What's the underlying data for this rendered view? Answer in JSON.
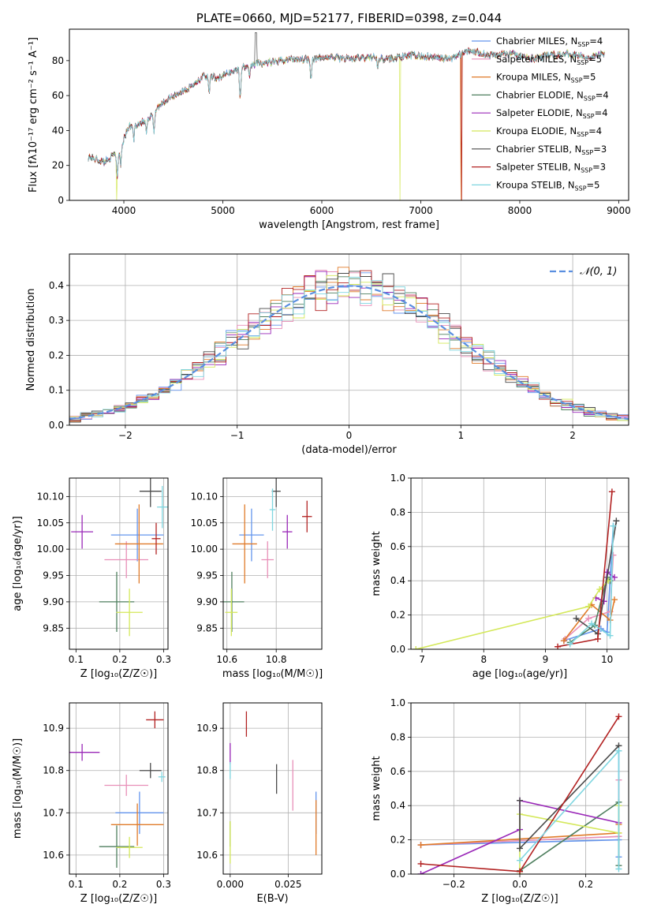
{
  "colors": {
    "Chabrier MILES": "#6495ed",
    "Salpeter MILES": "#e88fb8",
    "Kroupa MILES": "#e07b2a",
    "Chabrier ELODIE": "#4f7f5f",
    "Salpeter ELODIE": "#9a28b8",
    "Kroupa ELODIE": "#d4e85a",
    "Chabrier STELIB": "#4a4a4a",
    "Salpeter STELIB": "#b22222",
    "Kroupa STELIB": "#7fd6e0",
    "normal": "#5a8fe0",
    "grid": "#b0b0b0"
  },
  "chart_data": [
    {
      "id": "spectrum",
      "type": "line",
      "title": "PLATE=0660, MJD=52177, FIBERID=0398, z=0.044",
      "xlabel": "wavelength [Angstrom, rest frame]",
      "ylabel": "Flux [fλ10⁻¹⁷ erg cm⁻² s⁻¹ A⁻¹]",
      "xlim": [
        3450,
        9100
      ],
      "ylim": [
        0,
        98
      ],
      "xticks": [
        "4000",
        "5000",
        "6000",
        "7000",
        "8000",
        "9000"
      ],
      "yticks": [
        "0",
        "20",
        "40",
        "60",
        "80"
      ],
      "legend": [
        {
          "name": "Chabrier MILES",
          "nssp": "4"
        },
        {
          "name": "Salpeter MILES",
          "nssp": "5"
        },
        {
          "name": "Kroupa MILES",
          "nssp": "5"
        },
        {
          "name": "Chabrier ELODIE",
          "nssp": "4"
        },
        {
          "name": "Salpeter ELODIE",
          "nssp": "4"
        },
        {
          "name": "Kroupa ELODIE",
          "nssp": "4"
        },
        {
          "name": "Chabrier STELIB",
          "nssp": "3"
        },
        {
          "name": "Salpeter STELIB",
          "nssp": "3"
        },
        {
          "name": "Kroupa STELIB",
          "nssp": "5"
        }
      ],
      "legend_loc": "upper right",
      "grid": false,
      "continuum": [
        [
          3640,
          25
        ],
        [
          3800,
          22
        ],
        [
          3950,
          28
        ],
        [
          4050,
          42
        ],
        [
          4150,
          44
        ],
        [
          4250,
          46
        ],
        [
          4350,
          54
        ],
        [
          4500,
          60
        ],
        [
          4650,
          64
        ],
        [
          4800,
          71
        ],
        [
          4950,
          70
        ],
        [
          5100,
          74
        ],
        [
          5300,
          78
        ],
        [
          5500,
          79
        ],
        [
          5700,
          81
        ],
        [
          5900,
          81
        ],
        [
          6100,
          82
        ],
        [
          6300,
          81
        ],
        [
          6500,
          82
        ],
        [
          6700,
          81
        ],
        [
          6900,
          83
        ],
        [
          7100,
          82
        ],
        [
          7300,
          81
        ],
        [
          7500,
          86
        ],
        [
          7700,
          83
        ],
        [
          7900,
          84
        ],
        [
          8100,
          81
        ],
        [
          8300,
          83
        ],
        [
          8500,
          84
        ],
        [
          8700,
          82
        ],
        [
          8850,
          84
        ]
      ],
      "absorption_lines": [
        [
          3934,
          -14
        ],
        [
          3969,
          -10
        ],
        [
          4101,
          -8
        ],
        [
          4227,
          -7
        ],
        [
          4304,
          -12
        ],
        [
          4861,
          -10
        ],
        [
          5175,
          -18
        ],
        [
          5270,
          -8
        ],
        [
          5890,
          -11
        ],
        [
          6563,
          -6
        ]
      ],
      "dropouts": [
        {
          "series": "Kroupa ELODIE",
          "x": 3925
        },
        {
          "series": "Kroupa ELODIE",
          "x": 6790
        },
        {
          "series": "Kroupa MILES",
          "x": 7405
        },
        {
          "series": "Salpeter STELIB",
          "x": 7410
        }
      ],
      "spike": {
        "x": 5335,
        "y": 96
      }
    },
    {
      "id": "histogram",
      "type": "histogram",
      "xlabel": "(data-model)/error",
      "ylabel": "Normed distribution",
      "xlim": [
        -2.5,
        2.5
      ],
      "ylim": [
        0,
        0.49
      ],
      "bins": 50,
      "xticks": [
        "−2",
        "−1",
        "0",
        "1",
        "2"
      ],
      "yticks": [
        "0.0",
        "0.1",
        "0.2",
        "0.3",
        "0.4"
      ],
      "legend": [
        "𝒩(0, 1)"
      ],
      "legend_loc": "upper right",
      "grid": true,
      "reference": "normal(0,1)"
    },
    {
      "id": "age_vs_z",
      "type": "errorbar",
      "xlabel": "Z [log₁₀(Z/Z☉)]",
      "ylabel": "age  [log₁₀(age/yr)]",
      "xlim": [
        0.085,
        0.31
      ],
      "ylim": [
        9.81,
        10.135
      ],
      "xticks": [
        "0.1",
        "0.2",
        "0.3"
      ],
      "yticks": [
        "9.85",
        "9.90",
        "9.95",
        "10.00",
        "10.05",
        "10.10"
      ],
      "grid": true,
      "points": [
        {
          "series": "Chabrier MILES",
          "x": 0.24,
          "y": 10.027,
          "xerr": 0.06,
          "yerr": 0.05
        },
        {
          "series": "Salpeter MILES",
          "x": 0.215,
          "y": 9.98,
          "xerr": 0.05,
          "yerr": 0.035
        },
        {
          "series": "Kroupa MILES",
          "x": 0.244,
          "y": 10.01,
          "xerr": 0.055,
          "yerr": 0.075
        },
        {
          "series": "Chabrier ELODIE",
          "x": 0.193,
          "y": 9.9,
          "xerr": 0.04,
          "yerr": 0.057
        },
        {
          "series": "Salpeter ELODIE",
          "x": 0.114,
          "y": 10.033,
          "xerr": 0.025,
          "yerr": 0.032
        },
        {
          "series": "Kroupa ELODIE",
          "x": 0.222,
          "y": 9.88,
          "xerr": 0.03,
          "yerr": 0.045
        },
        {
          "series": "Chabrier STELIB",
          "x": 0.27,
          "y": 10.11,
          "xerr": 0.025,
          "yerr": 0.03
        },
        {
          "series": "Salpeter STELIB",
          "x": 0.283,
          "y": 10.02,
          "xerr": 0.01,
          "yerr": 0.03
        },
        {
          "series": "Kroupa STELIB",
          "x": 0.297,
          "y": 10.08,
          "xerr": 0.012,
          "yerr": 0.04
        }
      ]
    },
    {
      "id": "age_vs_mass",
      "type": "errorbar",
      "xlabel": "mass [log₁₀(M/M☉)]",
      "ylabel": "",
      "xlim": [
        0.585,
        0.985
      ],
      "xscale_offset": 10,
      "ylim": [
        9.81,
        10.135
      ],
      "xticks": [
        "10.6",
        "10.8"
      ],
      "yticks": [
        "9.85",
        "9.90",
        "9.95",
        "10.00",
        "10.05",
        "10.10"
      ],
      "grid": true,
      "points": [
        {
          "series": "Chabrier MILES",
          "x": 10.7,
          "y": 10.027,
          "xerr": 0.05,
          "yerr": 0.05
        },
        {
          "series": "Salpeter MILES",
          "x": 10.765,
          "y": 9.98,
          "xerr": 0.025,
          "yerr": 0.035
        },
        {
          "series": "Kroupa MILES",
          "x": 10.672,
          "y": 10.01,
          "xerr": 0.05,
          "yerr": 0.075
        },
        {
          "series": "Chabrier ELODIE",
          "x": 10.62,
          "y": 9.9,
          "xerr": 0.05,
          "yerr": 0.057
        },
        {
          "series": "Salpeter ELODIE",
          "x": 10.845,
          "y": 10.033,
          "xerr": 0.02,
          "yerr": 0.032
        },
        {
          "series": "Kroupa ELODIE",
          "x": 10.618,
          "y": 9.88,
          "xerr": 0.025,
          "yerr": 0.045
        },
        {
          "series": "Chabrier STELIB",
          "x": 10.8,
          "y": 10.11,
          "xerr": 0.018,
          "yerr": 0.03
        },
        {
          "series": "Salpeter STELIB",
          "x": 10.925,
          "y": 10.062,
          "xerr": 0.02,
          "yerr": 0.03
        },
        {
          "series": "Kroupa STELIB",
          "x": 10.785,
          "y": 10.075,
          "xerr": 0.012,
          "yerr": 0.04
        }
      ]
    },
    {
      "id": "weight_vs_age",
      "type": "line",
      "xlabel": "age  [log₁₀(age/yr)]",
      "ylabel": "mass weight",
      "xlim": [
        6.82,
        10.35
      ],
      "ylim": [
        0,
        1
      ],
      "xticks": [
        "7",
        "8",
        "9",
        "10"
      ],
      "yticks": [
        "0.0",
        "0.2",
        "0.4",
        "0.6",
        "0.8",
        "1.0"
      ],
      "grid": true,
      "series": [
        {
          "name": "Chabrier MILES",
          "x": [
            9.3,
            9.9,
            10.0,
            10.1
          ],
          "y": [
            0.05,
            0.12,
            0.1,
            0.72
          ]
        },
        {
          "name": "Salpeter MILES",
          "x": [
            9.32,
            9.7,
            10.05,
            10.1
          ],
          "y": [
            0.06,
            0.18,
            0.22,
            0.55
          ]
        },
        {
          "name": "Kroupa MILES",
          "x": [
            9.3,
            9.75,
            10.05,
            10.12
          ],
          "y": [
            0.05,
            0.26,
            0.17,
            0.29
          ]
        },
        {
          "name": "Chabrier ELODIE",
          "x": [
            9.4,
            9.8,
            10.0,
            10.05
          ],
          "y": [
            0.04,
            0.14,
            0.42,
            0.4
          ]
        },
        {
          "name": "Salpeter ELODIE",
          "x": [
            9.82,
            9.95,
            10.0,
            10.12
          ],
          "y": [
            0.3,
            0.28,
            0.45,
            0.42
          ]
        },
        {
          "name": "Kroupa ELODIE",
          "x": [
            6.9,
            9.7,
            9.88,
            10.02
          ],
          "y": [
            0.0,
            0.25,
            0.35,
            0.4
          ]
        },
        {
          "name": "Chabrier STELIB",
          "x": [
            9.5,
            9.85,
            10.15
          ],
          "y": [
            0.18,
            0.09,
            0.75
          ]
        },
        {
          "name": "Salpeter STELIB",
          "x": [
            9.2,
            9.85,
            10.08
          ],
          "y": [
            0.015,
            0.06,
            0.92
          ]
        },
        {
          "name": "Kroupa STELIB",
          "x": [
            9.4,
            9.75,
            10.05,
            10.1
          ],
          "y": [
            0.03,
            0.15,
            0.08,
            0.72
          ]
        }
      ]
    },
    {
      "id": "mass_vs_z",
      "type": "errorbar",
      "xlabel": "Z [log₁₀(Z/Z☉)]",
      "ylabel": "mass [log₁₀(M/M☉)]",
      "xlim": [
        0.085,
        0.31
      ],
      "ylim": [
        10.555,
        10.96
      ],
      "xticks": [
        "0.1",
        "0.2",
        "0.3"
      ],
      "yticks": [
        "10.6",
        "10.7",
        "10.8",
        "10.9"
      ],
      "grid": true,
      "points": [
        {
          "series": "Chabrier MILES",
          "x": 0.245,
          "y": 10.7,
          "xerr": 0.055,
          "yerr": 0.05
        },
        {
          "series": "Salpeter MILES",
          "x": 0.215,
          "y": 10.765,
          "xerr": 0.05,
          "yerr": 0.025
        },
        {
          "series": "Kroupa MILES",
          "x": 0.24,
          "y": 10.672,
          "xerr": 0.06,
          "yerr": 0.05
        },
        {
          "series": "Chabrier ELODIE",
          "x": 0.193,
          "y": 10.62,
          "xerr": 0.04,
          "yerr": 0.05
        },
        {
          "series": "Salpeter ELODIE",
          "x": 0.114,
          "y": 10.843,
          "xerr": 0.04,
          "yerr": 0.02
        },
        {
          "series": "Kroupa ELODIE",
          "x": 0.222,
          "y": 10.618,
          "xerr": 0.03,
          "yerr": 0.025
        },
        {
          "series": "Chabrier STELIB",
          "x": 0.27,
          "y": 10.8,
          "xerr": 0.025,
          "yerr": 0.018
        },
        {
          "series": "Salpeter STELIB",
          "x": 0.28,
          "y": 10.92,
          "xerr": 0.02,
          "yerr": 0.02
        },
        {
          "series": "Kroupa STELIB",
          "x": 0.296,
          "y": 10.785,
          "xerr": 0.008,
          "yerr": 0.012
        }
      ]
    },
    {
      "id": "mass_vs_ebv",
      "type": "errorbar",
      "xlabel": "E(B-V)",
      "ylabel": "",
      "xlim": [
        -0.003,
        0.0395
      ],
      "ylim": [
        10.555,
        10.96
      ],
      "xticks": [
        "0.000",
        "0.025"
      ],
      "yticks": [
        "10.6",
        "10.7",
        "10.8",
        "10.9"
      ],
      "grid": true,
      "points": [
        {
          "series": "Chabrier MILES",
          "x": 0.037,
          "y": 10.7,
          "xerr": 0,
          "yerr": 0.05
        },
        {
          "series": "Salpeter MILES",
          "x": 0.027,
          "y": 10.765,
          "xerr": 0,
          "yerr": 0.06
        },
        {
          "series": "Kroupa MILES",
          "x": 0.037,
          "y": 10.665,
          "xerr": 0,
          "yerr": 0.065
        },
        {
          "series": "Chabrier ELODIE",
          "x": 0.0,
          "y": 10.65,
          "xerr": 0,
          "yerr": 0.03
        },
        {
          "series": "Salpeter ELODIE",
          "x": 0.0,
          "y": 10.84,
          "xerr": 0,
          "yerr": 0.025
        },
        {
          "series": "Kroupa ELODIE",
          "x": 0.0,
          "y": 10.63,
          "xerr": 0,
          "yerr": 0.05
        },
        {
          "series": "Chabrier STELIB",
          "x": 0.02,
          "y": 10.78,
          "xerr": 0,
          "yerr": 0.035
        },
        {
          "series": "Salpeter STELIB",
          "x": 0.007,
          "y": 10.91,
          "xerr": 0,
          "yerr": 0.03
        },
        {
          "series": "Kroupa STELIB",
          "x": 0.0,
          "y": 10.8,
          "xerr": 0,
          "yerr": 0.02
        }
      ]
    },
    {
      "id": "weight_vs_z",
      "type": "line",
      "xlabel": "Z [log₁₀(Z/Z☉)]",
      "ylabel": "mass weight",
      "xlim": [
        -0.33,
        0.33
      ],
      "ylim": [
        0,
        1
      ],
      "xticks": [
        "−0.2",
        "0.0",
        "0.2"
      ],
      "yticks": [
        "0.0",
        "0.2",
        "0.4",
        "0.6",
        "0.8",
        "1.0"
      ],
      "grid": true,
      "series": [
        {
          "name": "Chabrier MILES",
          "x": [
            -0.3,
            0.3,
            0.3,
            0.3
          ],
          "y": [
            0.17,
            0.2,
            0.1,
            0.72
          ]
        },
        {
          "name": "Salpeter MILES",
          "x": [
            -0.3,
            0.3,
            0.3
          ],
          "y": [
            0.17,
            0.22,
            0.55
          ]
        },
        {
          "name": "Kroupa MILES",
          "x": [
            -0.3,
            0.3,
            0.3
          ],
          "y": [
            0.17,
            0.24,
            0.29
          ]
        },
        {
          "name": "Chabrier ELODIE",
          "x": [
            0.0,
            0.3,
            0.3
          ],
          "y": [
            0.02,
            0.42,
            0.05
          ]
        },
        {
          "name": "Salpeter ELODIE",
          "x": [
            -0.3,
            0.0,
            0.0,
            0.3
          ],
          "y": [
            0.0,
            0.26,
            0.43,
            0.3
          ]
        },
        {
          "name": "Kroupa ELODIE",
          "x": [
            0.0,
            0.0,
            0.3,
            0.3
          ],
          "y": [
            0.0,
            0.35,
            0.24,
            0.4
          ]
        },
        {
          "name": "Chabrier STELIB",
          "x": [
            0.0,
            0.0,
            0.3
          ],
          "y": [
            0.43,
            0.15,
            0.75
          ]
        },
        {
          "name": "Salpeter STELIB",
          "x": [
            -0.3,
            0.0,
            0.3
          ],
          "y": [
            0.06,
            0.015,
            0.92
          ]
        },
        {
          "name": "Kroupa STELIB",
          "x": [
            0.0,
            0.3,
            0.3
          ],
          "y": [
            0.08,
            0.72,
            0.03
          ]
        }
      ]
    }
  ]
}
